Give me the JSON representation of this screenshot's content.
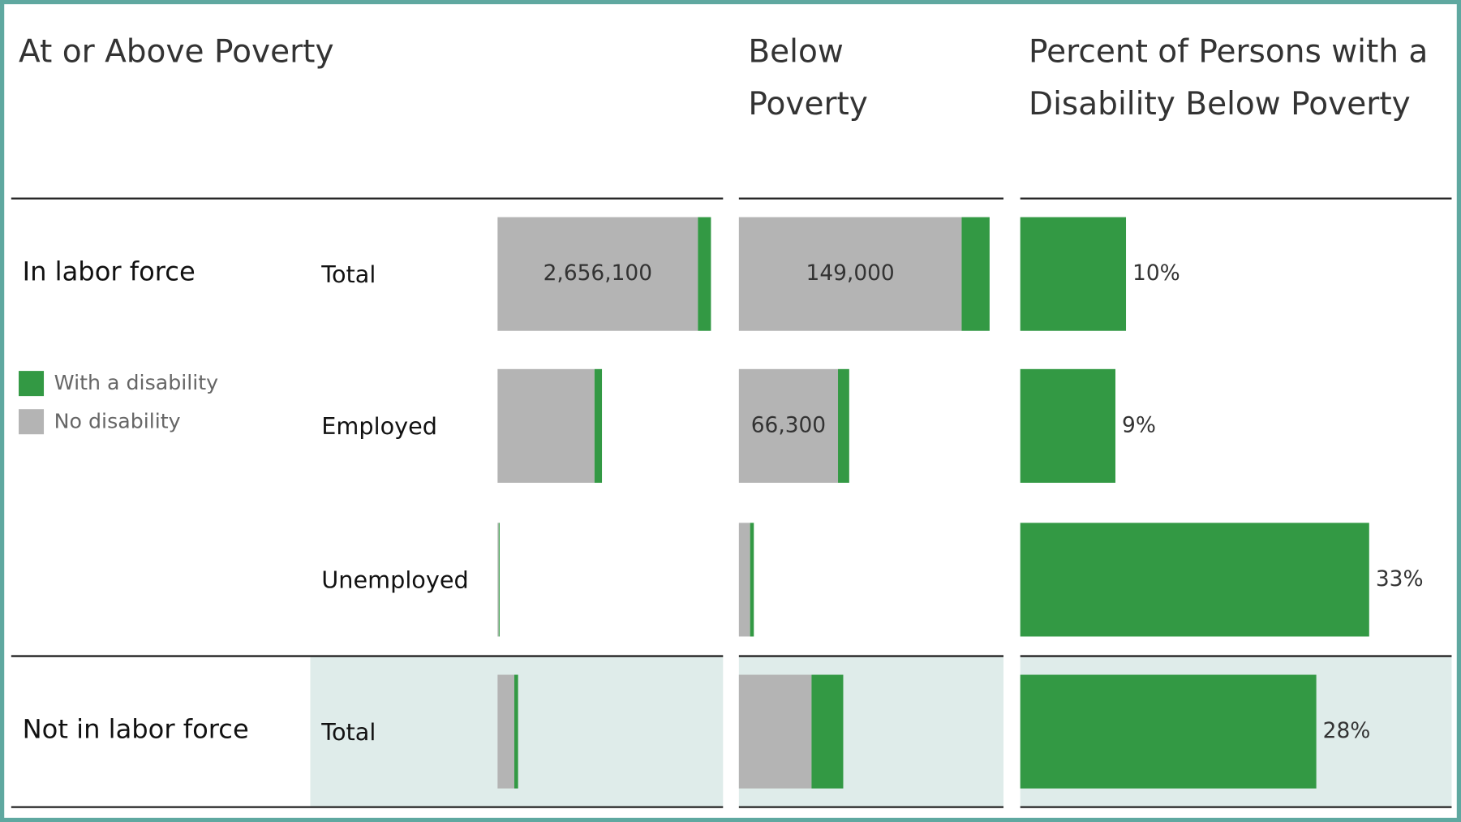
{
  "chart_data": [
    {
      "type": "stacked-bar",
      "title": "At or Above Poverty",
      "group_labels": [
        "In labor force",
        null,
        null,
        "Not in labor force"
      ],
      "categories": [
        "Total",
        "Employed",
        "Unemployed",
        "Total"
      ],
      "series": [
        {
          "name": "No disability",
          "color": "#b4b4b4",
          "values": [
            2656100,
            1285000,
            15000,
            222000
          ],
          "value_labels": [
            "2,656,100",
            null,
            null,
            null
          ]
        },
        {
          "name": "With a disability",
          "color": "#339944",
          "values": [
            173000,
            99000,
            12000,
            50000
          ]
        }
      ],
      "xlim": [
        0,
        2977000
      ]
    },
    {
      "type": "stacked-bar",
      "title": "Below Poverty",
      "series": [
        {
          "name": "No disability",
          "color": "#b4b4b4",
          "values": [
            149000,
            66300,
            7500,
            48600
          ],
          "value_labels": [
            "149,000",
            "66,300",
            null,
            null
          ]
        },
        {
          "name": "With a disability",
          "color": "#339944",
          "values": [
            18700,
            7500,
            2500,
            21200
          ]
        }
      ],
      "xlim": [
        0,
        177000
      ]
    },
    {
      "type": "bar",
      "title": "Percent of Persons with a Disability Below Poverty",
      "values": [
        10,
        9,
        33,
        28
      ],
      "value_labels": [
        "10%",
        "9%",
        "33%",
        "28%"
      ],
      "color": "#339944",
      "xlim": [
        0,
        40.8
      ]
    }
  ]
}
